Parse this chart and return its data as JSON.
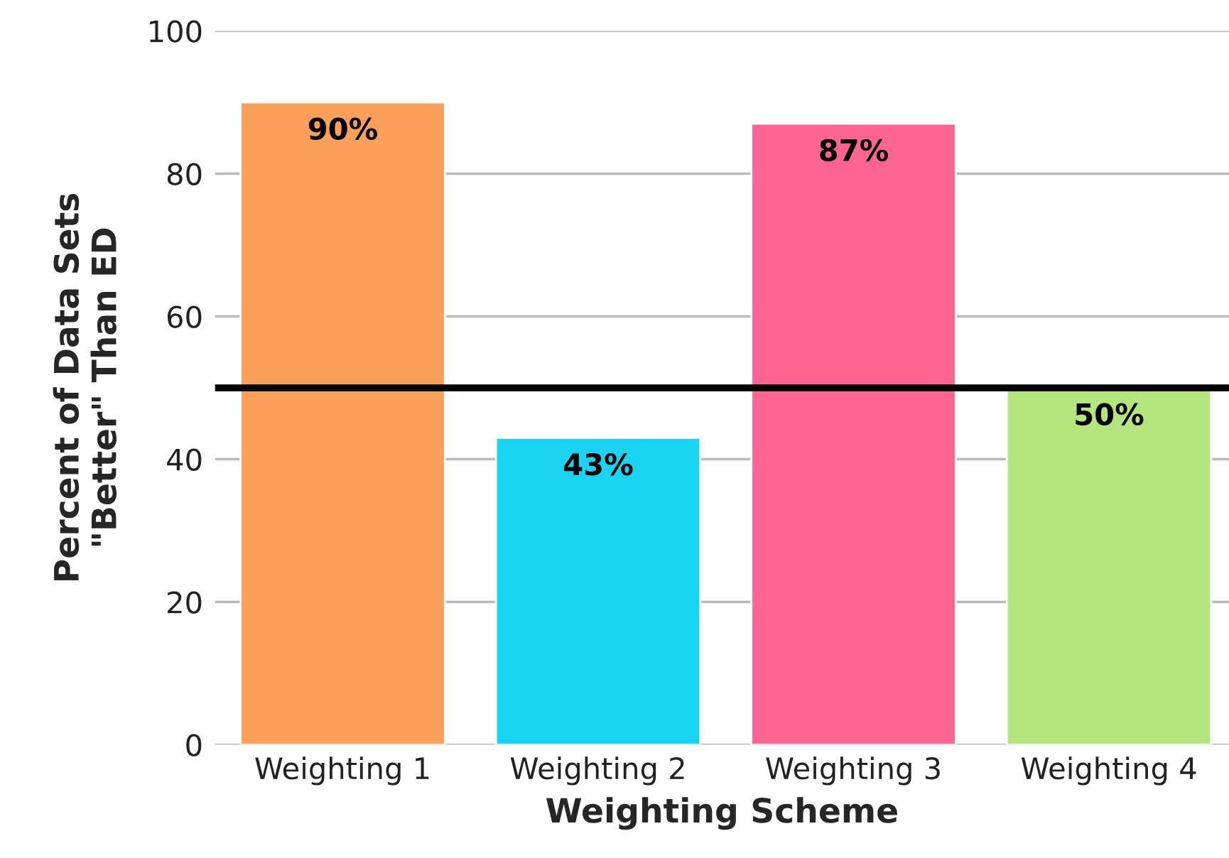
{
  "chart_data": {
    "type": "bar",
    "xlabel": "Weighting Scheme",
    "ylabel": "Percent of Data Sets\n\"Better\" Than ED",
    "categories": [
      "Weighting 1",
      "Weighting 2",
      "Weighting 3",
      "Weighting 4"
    ],
    "values": [
      90,
      43,
      87,
      50
    ],
    "colors": [
      "#fba05a",
      "#1ad3f0",
      "#ff6590",
      "#b5e57f"
    ],
    "value_labels": [
      "90%",
      "43%",
      "87%",
      "50%"
    ],
    "ylim": [
      0,
      100
    ],
    "yticks": [
      0,
      20,
      40,
      60,
      80,
      100
    ],
    "grid": "y",
    "ref_lines": [
      {
        "axis": "y",
        "value": 50,
        "color": "#000000",
        "line_style": "solid"
      }
    ]
  }
}
